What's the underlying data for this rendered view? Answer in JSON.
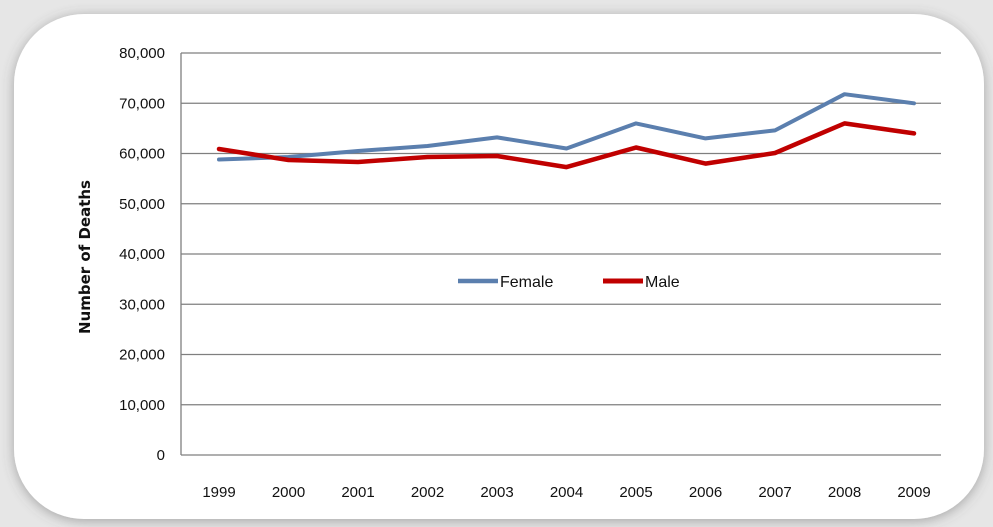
{
  "chart_data": {
    "type": "line",
    "title": "",
    "xlabel": "",
    "ylabel": "Number of Deaths",
    "x": [
      "1999",
      "2000",
      "2001",
      "2002",
      "2003",
      "2004",
      "2005",
      "2006",
      "2007",
      "2008",
      "2009"
    ],
    "ylim": [
      0,
      80000
    ],
    "yticks": [
      0,
      10000,
      20000,
      30000,
      40000,
      50000,
      60000,
      70000,
      80000
    ],
    "ytick_labels": [
      "0",
      "10,000",
      "20,000",
      "30,000",
      "40,000",
      "50,000",
      "60,000",
      "70,000",
      "80,000"
    ],
    "grid": true,
    "legend_position": "center",
    "series": [
      {
        "name": "Female",
        "color": "#5b7fae",
        "values": [
          58800,
          59300,
          60500,
          61500,
          63200,
          61000,
          66000,
          63000,
          64600,
          71800,
          70000
        ]
      },
      {
        "name": "Male",
        "color": "#c00000",
        "values": [
          60900,
          58700,
          58300,
          59300,
          59500,
          57300,
          61200,
          58000,
          60100,
          66000,
          64000
        ]
      }
    ]
  },
  "colors": {
    "page_background": "#e6e6e6",
    "card_background": "#ffffff",
    "gridline": "#7f7f7f"
  }
}
